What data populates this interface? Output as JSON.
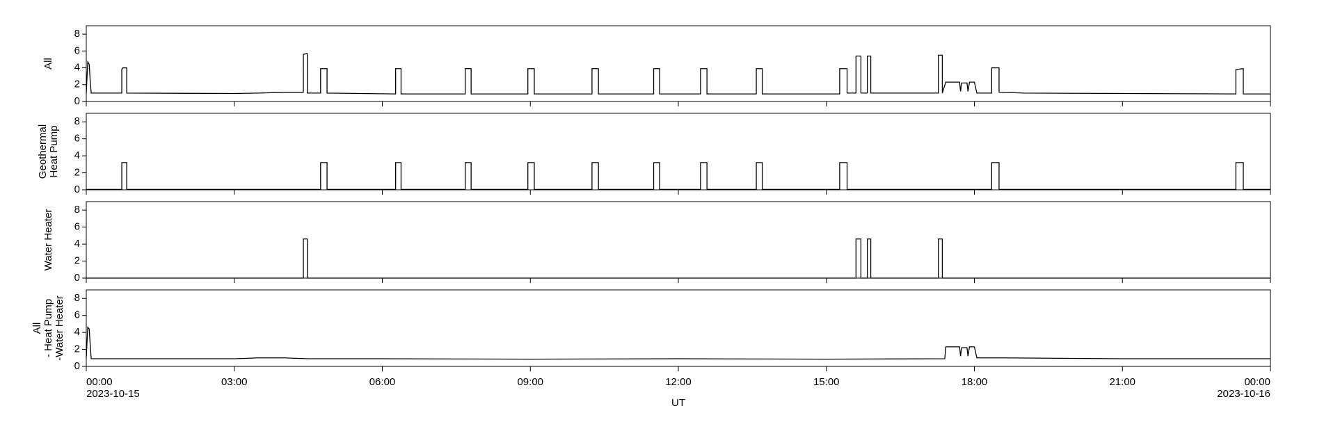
{
  "chart_data": [
    {
      "type": "line",
      "ylabel": [
        "All"
      ],
      "ylim": [
        0,
        9
      ],
      "yticks": [
        0,
        2,
        4,
        6,
        8
      ],
      "xlim": [
        0,
        24
      ],
      "series": [
        {
          "name": "All",
          "color": "#000000",
          "x": [
            0,
            0.03,
            0.06,
            0.08,
            0.1,
            0.72,
            0.72,
            0.74,
            0.82,
            0.82,
            3.0,
            3.5,
            4.0,
            4.4,
            4.4,
            4.48,
            4.48,
            4.75,
            4.75,
            4.88,
            4.88,
            6.27,
            6.27,
            6.38,
            6.38,
            7.68,
            7.68,
            7.8,
            7.8,
            8.95,
            8.95,
            9.08,
            9.08,
            10.25,
            10.25,
            10.38,
            10.38,
            11.5,
            11.5,
            11.62,
            11.62,
            12.45,
            12.45,
            12.58,
            12.58,
            13.58,
            13.58,
            13.7,
            13.7,
            15.27,
            15.27,
            15.42,
            15.42,
            15.6,
            15.6,
            15.7,
            15.7,
            15.83,
            15.83,
            15.9,
            15.9,
            17.27,
            17.27,
            17.35,
            17.35,
            17.42,
            17.7,
            17.72,
            17.74,
            17.85,
            17.87,
            17.9,
            18.0,
            18.05,
            18.35,
            18.35,
            18.5,
            18.5,
            19.0,
            23.3,
            23.3,
            23.45,
            23.45,
            24
          ],
          "values": [
            1.0,
            4.7,
            4.4,
            2.4,
            1.0,
            1.0,
            3.8,
            4.0,
            4.0,
            1.0,
            0.95,
            1.0,
            1.1,
            1.1,
            5.6,
            5.7,
            1.0,
            1.0,
            3.9,
            3.9,
            1.0,
            0.9,
            3.9,
            3.9,
            0.9,
            0.9,
            3.9,
            3.9,
            0.9,
            0.9,
            3.9,
            3.9,
            0.9,
            0.9,
            3.9,
            3.9,
            0.9,
            0.9,
            3.9,
            3.9,
            0.9,
            0.9,
            3.9,
            3.9,
            0.9,
            0.9,
            3.9,
            3.9,
            0.9,
            0.9,
            3.9,
            3.9,
            1.0,
            1.0,
            5.4,
            5.4,
            1.0,
            1.0,
            5.4,
            5.4,
            1.0,
            1.0,
            5.5,
            5.5,
            1.0,
            2.3,
            2.3,
            1.2,
            2.2,
            2.2,
            1.2,
            2.3,
            2.3,
            1.0,
            1.0,
            4.0,
            4.0,
            1.1,
            1.0,
            0.9,
            3.8,
            3.9,
            0.9,
            0.9
          ]
        }
      ]
    },
    {
      "type": "line",
      "ylabel": [
        "Geothermal",
        "Heat Pump"
      ],
      "ylim": [
        0,
        9
      ],
      "yticks": [
        0,
        2,
        4,
        6,
        8
      ],
      "xlim": [
        0,
        24
      ],
      "series": [
        {
          "name": "Geothermal Heat Pump",
          "color": "#000000",
          "x": [
            0,
            0.72,
            0.72,
            0.82,
            0.82,
            4.75,
            4.75,
            4.88,
            4.88,
            6.27,
            6.27,
            6.38,
            6.38,
            7.68,
            7.68,
            7.8,
            7.8,
            8.95,
            8.95,
            9.08,
            9.08,
            10.25,
            10.25,
            10.38,
            10.38,
            11.5,
            11.5,
            11.62,
            11.62,
            12.45,
            12.45,
            12.58,
            12.58,
            13.58,
            13.58,
            13.7,
            13.7,
            15.27,
            15.27,
            15.42,
            15.42,
            18.35,
            18.35,
            18.5,
            18.5,
            23.3,
            23.3,
            23.45,
            23.45,
            24
          ],
          "values": [
            0.05,
            0.05,
            3.2,
            3.2,
            0.05,
            0.05,
            3.2,
            3.2,
            0.05,
            0.05,
            3.2,
            3.2,
            0.05,
            0.05,
            3.2,
            3.2,
            0.05,
            0.05,
            3.2,
            3.2,
            0.05,
            0.05,
            3.2,
            3.2,
            0.05,
            0.05,
            3.2,
            3.2,
            0.05,
            0.05,
            3.2,
            3.2,
            0.05,
            0.05,
            3.2,
            3.2,
            0.05,
            0.05,
            3.2,
            3.2,
            0.05,
            0.05,
            3.2,
            3.2,
            0.05,
            0.05,
            3.2,
            3.2,
            0.05,
            0.05
          ]
        }
      ]
    },
    {
      "type": "line",
      "ylabel": [
        "Water Heater"
      ],
      "ylim": [
        0,
        9
      ],
      "yticks": [
        0,
        2,
        4,
        6,
        8
      ],
      "xlim": [
        0,
        24
      ],
      "series": [
        {
          "name": "Water Heater",
          "color": "#000000",
          "x": [
            0,
            4.4,
            4.4,
            4.48,
            4.48,
            15.6,
            15.6,
            15.7,
            15.7,
            15.83,
            15.83,
            15.9,
            15.9,
            17.27,
            17.27,
            17.35,
            17.35,
            24
          ],
          "values": [
            0,
            0,
            4.6,
            4.6,
            0,
            0,
            4.6,
            4.6,
            0,
            0,
            4.6,
            4.6,
            0,
            0,
            4.6,
            4.6,
            0,
            0
          ]
        }
      ]
    },
    {
      "type": "line",
      "ylabel": [
        "All",
        "- Heat Pump",
        "-Water Heater"
      ],
      "ylim": [
        0,
        9
      ],
      "yticks": [
        0,
        2,
        4,
        6,
        8
      ],
      "xlim": [
        0,
        24
      ],
      "xticks": [
        {
          "value": 0,
          "label": "00:00"
        },
        {
          "value": 3,
          "label": "03:00"
        },
        {
          "value": 6,
          "label": "06:00"
        },
        {
          "value": 9,
          "label": "09:00"
        },
        {
          "value": 12,
          "label": "12:00"
        },
        {
          "value": 15,
          "label": "15:00"
        },
        {
          "value": 18,
          "label": "18:00"
        },
        {
          "value": 21,
          "label": "21:00"
        },
        {
          "value": 24,
          "label": "00:00"
        }
      ],
      "x_date_labels": [
        {
          "value": 0,
          "label": "2023-10-15"
        },
        {
          "value": 24,
          "label": "2023-10-16"
        }
      ],
      "xlabel": "UT",
      "series": [
        {
          "name": "All - Heat Pump - Water Heater",
          "color": "#000000",
          "x": [
            0,
            0.03,
            0.06,
            0.08,
            0.1,
            3.0,
            3.5,
            4.0,
            4.5,
            6.0,
            9.0,
            12.0,
            15.0,
            17.4,
            17.42,
            17.7,
            17.72,
            17.74,
            17.85,
            17.87,
            17.9,
            18.0,
            18.05,
            18.6,
            21.0,
            24
          ],
          "values": [
            1.0,
            4.6,
            4.4,
            2.5,
            0.9,
            0.9,
            1.0,
            1.0,
            0.9,
            0.9,
            0.85,
            0.9,
            0.85,
            0.9,
            2.3,
            2.3,
            1.2,
            2.2,
            2.2,
            1.2,
            2.3,
            2.3,
            1.0,
            1.0,
            0.9,
            0.9
          ]
        }
      ]
    }
  ]
}
